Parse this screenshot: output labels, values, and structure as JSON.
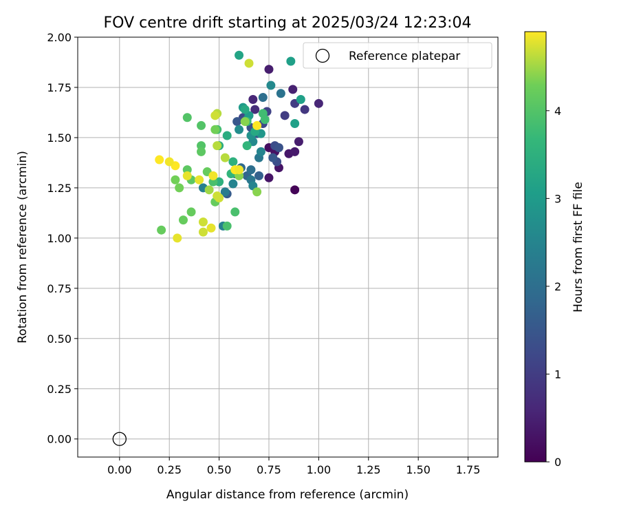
{
  "chart_data": {
    "type": "scatter",
    "title": "FOV centre drift starting at 2025/03/24 12:23:04",
    "xlabel": "Angular distance from reference (arcmin)",
    "ylabel": "Rotation from reference (arcmin)",
    "xlim": [
      -0.21,
      1.9
    ],
    "ylim": [
      -0.09,
      2.0
    ],
    "x_ticks": [
      "0.00",
      "0.25",
      "0.50",
      "0.75",
      "1.00",
      "1.25",
      "1.50",
      "1.75"
    ],
    "y_ticks": [
      "0.00",
      "0.25",
      "0.50",
      "0.75",
      "1.00",
      "1.25",
      "1.50",
      "1.75",
      "2.00"
    ],
    "grid": true,
    "legend": {
      "position": "top-right",
      "entries": [
        "Reference platepar"
      ]
    },
    "reference_point": {
      "x": 0.0,
      "y": 0.0
    },
    "colorbar": {
      "label": "Hours from first FF file",
      "min": 0,
      "max": 4.9,
      "ticks": [
        "0",
        "1",
        "2",
        "3",
        "4"
      ],
      "colormap": "viridis"
    },
    "points": [
      {
        "x": 0.88,
        "y": 1.24,
        "h": 0.05
      },
      {
        "x": 0.75,
        "y": 1.45,
        "h": 0.2
      },
      {
        "x": 0.78,
        "y": 1.43,
        "h": 0.25
      },
      {
        "x": 0.8,
        "y": 1.35,
        "h": 0.3
      },
      {
        "x": 0.75,
        "y": 1.3,
        "h": 0.3
      },
      {
        "x": 0.85,
        "y": 1.42,
        "h": 0.35
      },
      {
        "x": 0.88,
        "y": 1.43,
        "h": 0.4
      },
      {
        "x": 0.9,
        "y": 1.48,
        "h": 0.45
      },
      {
        "x": 0.75,
        "y": 1.84,
        "h": 0.45
      },
      {
        "x": 0.87,
        "y": 1.74,
        "h": 0.5
      },
      {
        "x": 1.0,
        "y": 1.67,
        "h": 0.6
      },
      {
        "x": 0.67,
        "y": 1.69,
        "h": 0.6
      },
      {
        "x": 0.68,
        "y": 1.64,
        "h": 0.7
      },
      {
        "x": 0.93,
        "y": 1.64,
        "h": 0.9
      },
      {
        "x": 0.88,
        "y": 1.67,
        "h": 1.0
      },
      {
        "x": 0.83,
        "y": 1.61,
        "h": 1.0
      },
      {
        "x": 0.74,
        "y": 1.63,
        "h": 1.1
      },
      {
        "x": 0.72,
        "y": 1.57,
        "h": 1.2
      },
      {
        "x": 0.78,
        "y": 1.46,
        "h": 1.3
      },
      {
        "x": 0.8,
        "y": 1.45,
        "h": 1.4
      },
      {
        "x": 0.79,
        "y": 1.38,
        "h": 1.3
      },
      {
        "x": 0.77,
        "y": 1.4,
        "h": 1.5
      },
      {
        "x": 0.62,
        "y": 1.6,
        "h": 1.2
      },
      {
        "x": 0.66,
        "y": 1.55,
        "h": 1.4
      },
      {
        "x": 0.69,
        "y": 1.52,
        "h": 1.5
      },
      {
        "x": 0.59,
        "y": 1.58,
        "h": 1.5
      },
      {
        "x": 0.54,
        "y": 1.22,
        "h": 1.6
      },
      {
        "x": 0.7,
        "y": 1.31,
        "h": 1.7
      },
      {
        "x": 0.64,
        "y": 1.31,
        "h": 1.8
      },
      {
        "x": 0.58,
        "y": 1.32,
        "h": 1.8
      },
      {
        "x": 0.61,
        "y": 1.35,
        "h": 1.9
      },
      {
        "x": 0.66,
        "y": 1.34,
        "h": 2.0
      },
      {
        "x": 0.72,
        "y": 1.7,
        "h": 2.0
      },
      {
        "x": 0.81,
        "y": 1.72,
        "h": 2.1
      },
      {
        "x": 0.7,
        "y": 1.4,
        "h": 2.2
      },
      {
        "x": 0.66,
        "y": 1.29,
        "h": 2.2
      },
      {
        "x": 0.53,
        "y": 1.23,
        "h": 2.3
      },
      {
        "x": 0.52,
        "y": 1.06,
        "h": 2.4
      },
      {
        "x": 0.42,
        "y": 1.25,
        "h": 2.4
      },
      {
        "x": 0.57,
        "y": 1.27,
        "h": 2.5
      },
      {
        "x": 0.67,
        "y": 1.26,
        "h": 2.5
      },
      {
        "x": 0.71,
        "y": 1.43,
        "h": 2.5
      },
      {
        "x": 0.67,
        "y": 1.48,
        "h": 2.6
      },
      {
        "x": 0.76,
        "y": 1.76,
        "h": 2.6
      },
      {
        "x": 0.6,
        "y": 1.54,
        "h": 2.7
      },
      {
        "x": 0.64,
        "y": 1.59,
        "h": 2.8
      },
      {
        "x": 0.66,
        "y": 1.51,
        "h": 2.8
      },
      {
        "x": 0.71,
        "y": 1.52,
        "h": 2.9
      },
      {
        "x": 0.65,
        "y": 1.61,
        "h": 3.0
      },
      {
        "x": 0.62,
        "y": 1.65,
        "h": 3.0
      },
      {
        "x": 0.88,
        "y": 1.57,
        "h": 3.1
      },
      {
        "x": 0.91,
        "y": 1.69,
        "h": 3.1
      },
      {
        "x": 0.86,
        "y": 1.88,
        "h": 3.1
      },
      {
        "x": 0.6,
        "y": 1.91,
        "h": 3.2
      },
      {
        "x": 0.63,
        "y": 1.64,
        "h": 3.3
      },
      {
        "x": 0.68,
        "y": 1.53,
        "h": 3.3
      },
      {
        "x": 0.54,
        "y": 1.51,
        "h": 3.4
      },
      {
        "x": 0.5,
        "y": 1.46,
        "h": 3.4
      },
      {
        "x": 0.57,
        "y": 1.38,
        "h": 3.5
      },
      {
        "x": 0.56,
        "y": 1.32,
        "h": 3.6
      },
      {
        "x": 0.5,
        "y": 1.28,
        "h": 3.5
      },
      {
        "x": 0.64,
        "y": 1.46,
        "h": 3.6
      },
      {
        "x": 0.64,
        "y": 1.58,
        "h": 3.7
      },
      {
        "x": 0.72,
        "y": 1.62,
        "h": 3.8
      },
      {
        "x": 0.73,
        "y": 1.59,
        "h": 3.8
      },
      {
        "x": 0.49,
        "y": 1.54,
        "h": 3.8
      },
      {
        "x": 0.47,
        "y": 1.28,
        "h": 3.9
      },
      {
        "x": 0.54,
        "y": 1.06,
        "h": 3.9
      },
      {
        "x": 0.58,
        "y": 1.13,
        "h": 3.9
      },
      {
        "x": 0.41,
        "y": 1.46,
        "h": 4.0
      },
      {
        "x": 0.41,
        "y": 1.56,
        "h": 4.0
      },
      {
        "x": 0.34,
        "y": 1.6,
        "h": 4.0
      },
      {
        "x": 0.41,
        "y": 1.43,
        "h": 4.1
      },
      {
        "x": 0.34,
        "y": 1.34,
        "h": 4.1
      },
      {
        "x": 0.36,
        "y": 1.29,
        "h": 4.1
      },
      {
        "x": 0.44,
        "y": 1.33,
        "h": 4.2
      },
      {
        "x": 0.48,
        "y": 1.18,
        "h": 4.2
      },
      {
        "x": 0.36,
        "y": 1.13,
        "h": 4.2
      },
      {
        "x": 0.32,
        "y": 1.09,
        "h": 4.2
      },
      {
        "x": 0.21,
        "y": 1.04,
        "h": 4.2
      },
      {
        "x": 0.28,
        "y": 1.29,
        "h": 4.3
      },
      {
        "x": 0.3,
        "y": 1.25,
        "h": 4.3
      },
      {
        "x": 0.48,
        "y": 1.54,
        "h": 4.3
      },
      {
        "x": 0.6,
        "y": 1.31,
        "h": 4.4
      },
      {
        "x": 0.58,
        "y": 1.34,
        "h": 4.5
      },
      {
        "x": 0.63,
        "y": 1.58,
        "h": 4.4
      },
      {
        "x": 0.69,
        "y": 1.23,
        "h": 4.4
      },
      {
        "x": 0.45,
        "y": 1.24,
        "h": 4.5
      },
      {
        "x": 0.53,
        "y": 1.4,
        "h": 4.6
      },
      {
        "x": 0.49,
        "y": 1.62,
        "h": 4.6
      },
      {
        "x": 0.48,
        "y": 1.61,
        "h": 4.7
      },
      {
        "x": 0.49,
        "y": 1.46,
        "h": 4.6
      },
      {
        "x": 0.49,
        "y": 1.21,
        "h": 4.7
      },
      {
        "x": 0.5,
        "y": 1.2,
        "h": 4.7
      },
      {
        "x": 0.42,
        "y": 1.08,
        "h": 4.7
      },
      {
        "x": 0.42,
        "y": 1.03,
        "h": 4.7
      },
      {
        "x": 0.46,
        "y": 1.05,
        "h": 4.8
      },
      {
        "x": 0.29,
        "y": 1.0,
        "h": 4.8
      },
      {
        "x": 0.4,
        "y": 1.29,
        "h": 4.8
      },
      {
        "x": 0.34,
        "y": 1.31,
        "h": 4.8
      },
      {
        "x": 0.47,
        "y": 1.31,
        "h": 4.85
      },
      {
        "x": 0.28,
        "y": 1.36,
        "h": 4.9
      },
      {
        "x": 0.25,
        "y": 1.38,
        "h": 4.85
      },
      {
        "x": 0.2,
        "y": 1.39,
        "h": 4.9
      },
      {
        "x": 0.58,
        "y": 1.34,
        "h": 4.9
      },
      {
        "x": 0.6,
        "y": 1.34,
        "h": 4.85
      },
      {
        "x": 0.65,
        "y": 1.87,
        "h": 4.7
      },
      {
        "x": 0.69,
        "y": 1.56,
        "h": 4.9
      }
    ]
  }
}
